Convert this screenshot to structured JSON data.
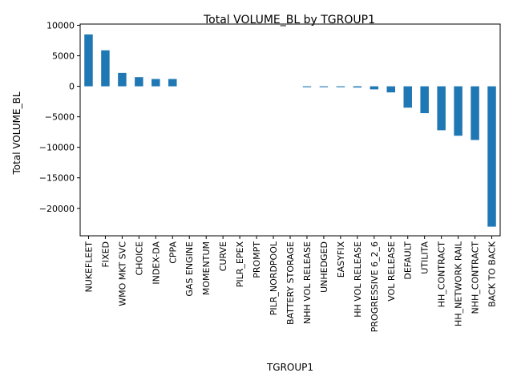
{
  "chart_data": {
    "type": "bar",
    "title": "Total VOLUME_BL by TGROUP1",
    "xlabel": "TGROUP1",
    "ylabel": "Total VOLUME_BL",
    "ylim": [
      -24500,
      10200
    ],
    "yticks": [
      10000,
      5000,
      0,
      -5000,
      -10000,
      -15000,
      -20000
    ],
    "ytick_labels": [
      "10000",
      "5000",
      "0",
      "−5000",
      "−10000",
      "−15000",
      "−20000"
    ],
    "grid": false,
    "legend": "none",
    "bar_color": "#1f77b4",
    "categories": [
      "NUKEFLEET",
      "FIXED",
      "WMO MKT SVC",
      "CHOICE",
      "INDEX-DA",
      "CPPA",
      "GAS ENGINE",
      "MOMENTUM",
      "CURVE",
      "PILR_EPEX",
      "PROMPT",
      "PILR_NORDPOOL",
      "BATTERY STORAGE",
      "NHH VOL RELEASE",
      "UNHEDGED",
      "EASYFIX",
      "HH VOL RELEASE",
      "PROGRESSIVE 6_2_6",
      "VOL RELEASE",
      "DEFAULT",
      "UTILITA",
      "HH_CONTRACT",
      "HH_NETWORK RAIL",
      "NHH_CONTRACT",
      "BACK TO BACK"
    ],
    "values": [
      8500,
      5900,
      2200,
      1500,
      1200,
      1200,
      0,
      0,
      0,
      0,
      0,
      0,
      0,
      -150,
      -150,
      -150,
      -200,
      -500,
      -1000,
      -3500,
      -4400,
      -7200,
      -8100,
      -8800,
      -23000
    ]
  }
}
